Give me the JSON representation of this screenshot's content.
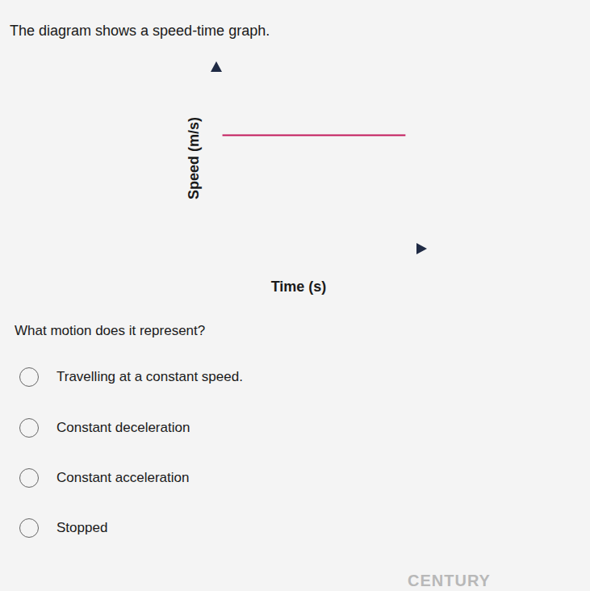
{
  "header": {
    "title": "The diagram shows a speed-time graph."
  },
  "chart_data": {
    "type": "line",
    "x_label": "Time (s)",
    "y_label": "Speed (m/s)",
    "x": [
      0.3,
      9.3
    ],
    "values": [
      6.3,
      6.3
    ],
    "xlim": [
      0,
      10
    ],
    "ylim": [
      0,
      10
    ],
    "color": "#c2185b",
    "tick_labels": false
  },
  "question": "What motion does it represent?",
  "options": [
    "Travelling at a constant speed.",
    "Constant deceleration",
    "Constant acceleration",
    "Stopped"
  ],
  "footer": "CENTURY"
}
